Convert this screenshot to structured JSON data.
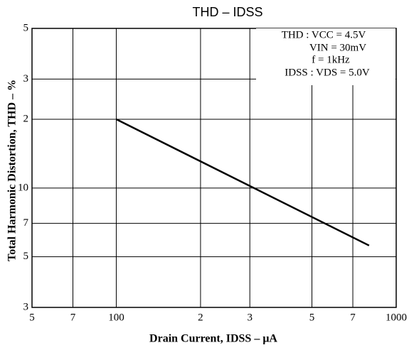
{
  "chart_data": {
    "type": "line",
    "title": "THD – IDSS",
    "x_label": "Drain Current, IDSS – μA",
    "y_label": "Total Harmonic Distortion, THD – %",
    "annotations": [
      "THD : VCC = 4.5V",
      "VIN = 30mV",
      "f = 1kHz",
      "IDSS : VDS = 5.0V"
    ],
    "x": [
      100,
      800
    ],
    "series": [
      {
        "name": "THD",
        "color": "#000000",
        "values": [
          20,
          5.6
        ]
      }
    ],
    "xscale": "log",
    "yscale": "log",
    "grid": true,
    "xlim": [
      50,
      1000
    ],
    "xticks": [
      {
        "value": 50,
        "label": "5"
      },
      {
        "value": 70,
        "label": "7"
      },
      100,
      {
        "value": 200,
        "label": "2"
      },
      {
        "value": 300,
        "label": "3"
      },
      {
        "value": 500,
        "label": "5"
      },
      {
        "value": 700,
        "label": "7"
      },
      1000
    ],
    "ylim": [
      3,
      50
    ],
    "yticks": [
      3,
      5,
      7,
      10,
      {
        "value": 20,
        "label": "2"
      },
      {
        "value": 30,
        "label": "3"
      },
      {
        "value": 50,
        "label": "5"
      }
    ]
  }
}
